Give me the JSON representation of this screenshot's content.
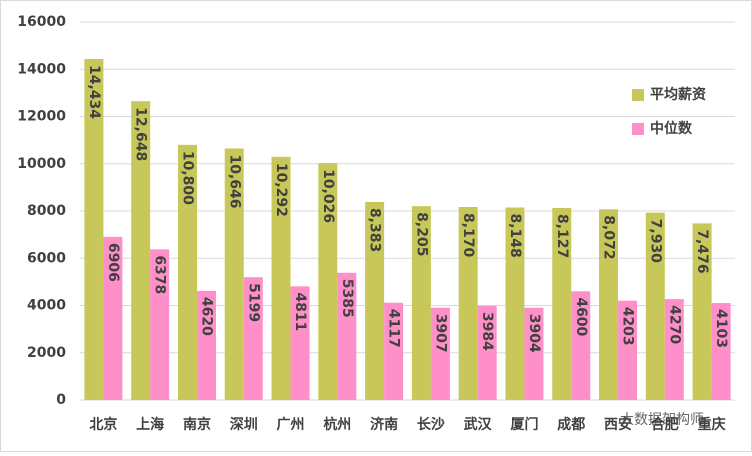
{
  "chart_data": {
    "type": "bar",
    "categories": [
      "北京",
      "上海",
      "南京",
      "深圳",
      "广州",
      "杭州",
      "济南",
      "长沙",
      "武汉",
      "厦门",
      "成都",
      "西安",
      "合肥",
      "重庆"
    ],
    "series": [
      {
        "name": "平均薪资",
        "color": "#c8c85a",
        "values": [
          14434,
          12648,
          10800,
          10646,
          10292,
          10026,
          8383,
          8205,
          8170,
          8148,
          8127,
          8072,
          7930,
          7476
        ],
        "value_labels": [
          "14,434",
          "12,648",
          "10,800",
          "10,646",
          "10,292",
          "10,026",
          "8,383",
          "8,205",
          "8,170",
          "8,148",
          "8,127",
          "8,072",
          "7,930",
          "7,476"
        ]
      },
      {
        "name": "中位数",
        "color": "#ff8fc8",
        "values": [
          6906,
          6378,
          4620,
          5199,
          4811,
          5385,
          4117,
          3907,
          3984,
          3904,
          4600,
          4203,
          4270,
          4103
        ]
      }
    ],
    "ylim": [
      0,
      16000
    ],
    "yticks": [
      0,
      2000,
      4000,
      6000,
      8000,
      10000,
      12000,
      14000,
      16000
    ],
    "grid": true,
    "legend": "right",
    "watermark": "大数据架构师"
  }
}
